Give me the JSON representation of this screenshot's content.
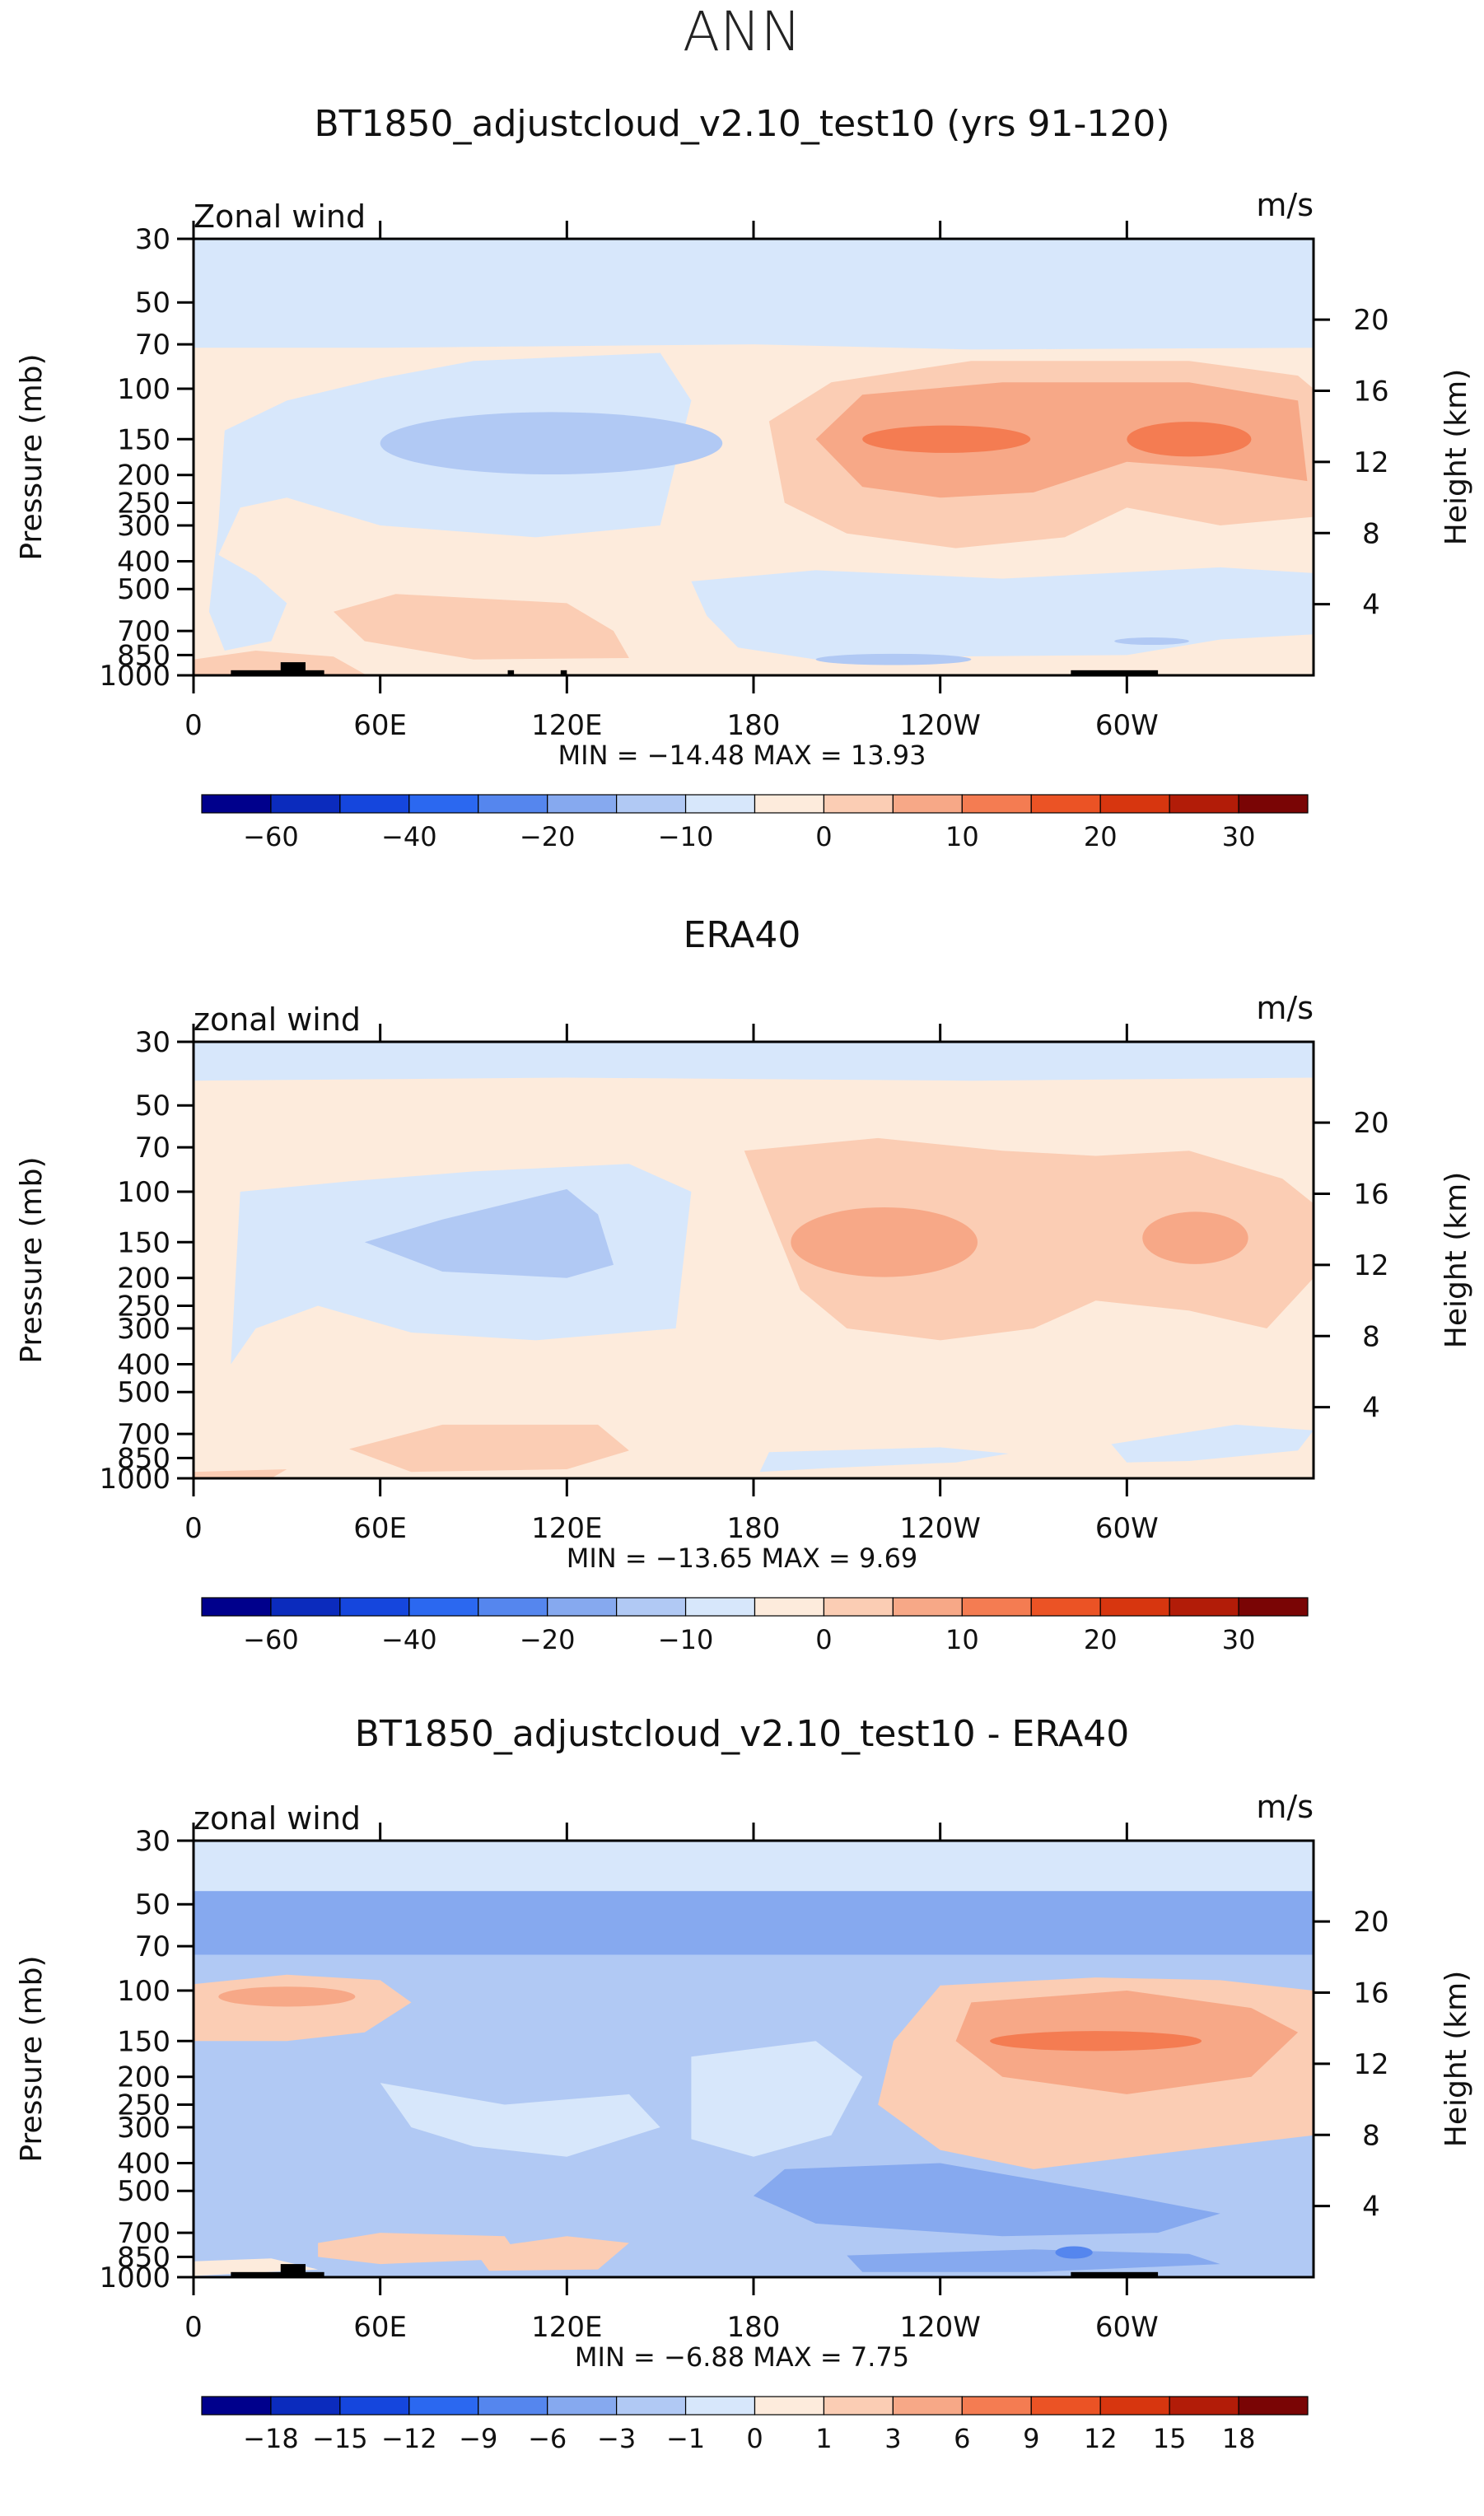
{
  "page_title": "ANN",
  "panels": [
    {
      "title": "BT1850_adjustcloud_v2.10_test10 (yrs 91-120)",
      "corner_left": "Zonal wind",
      "corner_right": "m/s",
      "y_label": "Pressure (mb)",
      "y2_label": "Height (km)",
      "stats": "MIN = −14.48   MAX =   13.93"
    },
    {
      "title": "ERA40",
      "corner_left": "zonal wind",
      "corner_right": "m/s",
      "y_label": "Pressure (mb)",
      "y2_label": "Height (km)",
      "stats": "MIN = −13.65   MAX =    9.69"
    },
    {
      "title": "BT1850_adjustcloud_v2.10_test10 - ERA40",
      "corner_left": "zonal wind",
      "corner_right": "m/s",
      "y_label": "Pressure (mb)",
      "y2_label": "Height (km)",
      "stats": "MIN =   −6.88   MAX =    7.75"
    }
  ],
  "chart_data": [
    {
      "type": "heatmap",
      "title": "BT1850_adjustcloud_v2.10_test10 (yrs 91-120)",
      "variable": "Zonal wind",
      "units": "m/s",
      "x_ticks": [
        "0",
        "60E",
        "120E",
        "180",
        "120W",
        "60W"
      ],
      "x_tick_lon": [
        0,
        60,
        120,
        180,
        240,
        300
      ],
      "xlim": [
        0,
        360
      ],
      "y_ticks": [
        "30",
        "50",
        "70",
        "100",
        "150",
        "200",
        "250",
        "300",
        "400",
        "500",
        "700",
        "850",
        "1000"
      ],
      "y_tick_values": [
        30,
        50,
        70,
        100,
        150,
        200,
        250,
        300,
        400,
        500,
        700,
        850,
        1000
      ],
      "ylim": [
        1000,
        30
      ],
      "y2_ticks": [
        "4",
        "8",
        "12",
        "16",
        "20"
      ],
      "y2_tick_values": [
        4,
        8,
        12,
        16,
        20
      ],
      "min": -14.48,
      "max": 13.93,
      "colorbar_labels": [
        "−60",
        "−40",
        "−20",
        "−10",
        "0",
        "10",
        "20",
        "30"
      ],
      "colorbar_colors": [
        "#00008c",
        "#0b2bbd",
        "#1546dd",
        "#2b68f0",
        "#5586ee",
        "#86a9ef",
        "#b1c9f4",
        "#d7e7fb",
        "#fdebdc",
        "#fbcdb4",
        "#f7a887",
        "#f47c52",
        "#eb5325",
        "#d7360f",
        "#b21c08",
        "#7a0505"
      ],
      "features": [
        {
          "kind": "ellipse",
          "lon": 180,
          "p": 36,
          "rx_deg": 190,
          "ry_hpa_log": 0.18,
          "level": 0
        },
        {
          "kind": "ellipse",
          "lon": 110,
          "p": 160,
          "rx_deg": 60,
          "ry_hpa_log": 0.28,
          "level": -1
        },
        {
          "kind": "ellipse",
          "lon": 270,
          "p": 150,
          "rx_deg": 85,
          "ry_hpa_log": 0.28,
          "level": 2
        },
        {
          "kind": "ellipse",
          "lon": 275,
          "p": 650,
          "rx_deg": 80,
          "ry_hpa_log": 0.14,
          "level": -1
        }
      ]
    },
    {
      "type": "heatmap",
      "title": "ERA40",
      "variable": "zonal wind",
      "units": "m/s",
      "x_ticks": [
        "0",
        "60E",
        "120E",
        "180",
        "120W",
        "60W"
      ],
      "x_tick_lon": [
        0,
        60,
        120,
        180,
        240,
        300
      ],
      "xlim": [
        0,
        360
      ],
      "y_ticks": [
        "30",
        "50",
        "70",
        "100",
        "150",
        "200",
        "250",
        "300",
        "400",
        "500",
        "700",
        "850",
        "1000"
      ],
      "y_tick_values": [
        30,
        50,
        70,
        100,
        150,
        200,
        250,
        300,
        400,
        500,
        700,
        850,
        1000
      ],
      "ylim": [
        1000,
        30
      ],
      "y2_ticks": [
        "4",
        "8",
        "12",
        "16",
        "20"
      ],
      "y2_tick_values": [
        4,
        8,
        12,
        16,
        20
      ],
      "min": -13.65,
      "max": 9.69,
      "colorbar_labels": [
        "−60",
        "−40",
        "−20",
        "−10",
        "0",
        "10",
        "20",
        "30"
      ],
      "colorbar_colors": [
        "#00008c",
        "#0b2bbd",
        "#1546dd",
        "#2b68f0",
        "#5586ee",
        "#86a9ef",
        "#b1c9f4",
        "#d7e7fb",
        "#fdebdc",
        "#fbcdb4",
        "#f7a887",
        "#f47c52",
        "#eb5325",
        "#d7360f",
        "#b21c08",
        "#7a0505"
      ]
    },
    {
      "type": "heatmap",
      "title": "BT1850_adjustcloud_v2.10_test10 - ERA40",
      "variable": "zonal wind",
      "units": "m/s",
      "x_ticks": [
        "0",
        "60E",
        "120E",
        "180",
        "120W",
        "60W"
      ],
      "x_tick_lon": [
        0,
        60,
        120,
        180,
        240,
        300
      ],
      "xlim": [
        0,
        360
      ],
      "y_ticks": [
        "30",
        "50",
        "70",
        "100",
        "150",
        "200",
        "250",
        "300",
        "400",
        "500",
        "700",
        "850",
        "1000"
      ],
      "y_tick_values": [
        30,
        50,
        70,
        100,
        150,
        200,
        250,
        300,
        400,
        500,
        700,
        850,
        1000
      ],
      "ylim": [
        1000,
        30
      ],
      "y2_ticks": [
        "4",
        "8",
        "12",
        "16",
        "20"
      ],
      "y2_tick_values": [
        4,
        8,
        12,
        16,
        20
      ],
      "min": -6.88,
      "max": 7.75,
      "colorbar_labels": [
        "−18",
        "−15",
        "−12",
        "−9",
        "−6",
        "−3",
        "−1",
        "0",
        "1",
        "3",
        "6",
        "9",
        "12",
        "15",
        "18"
      ],
      "colorbar_colors": [
        "#00008c",
        "#0b2bbd",
        "#1546dd",
        "#2b68f0",
        "#5586ee",
        "#86a9ef",
        "#b1c9f4",
        "#d7e7fb",
        "#fdebdc",
        "#fbcdb4",
        "#f7a887",
        "#f47c52",
        "#eb5325",
        "#d7360f",
        "#b21c08",
        "#7a0505"
      ]
    }
  ]
}
